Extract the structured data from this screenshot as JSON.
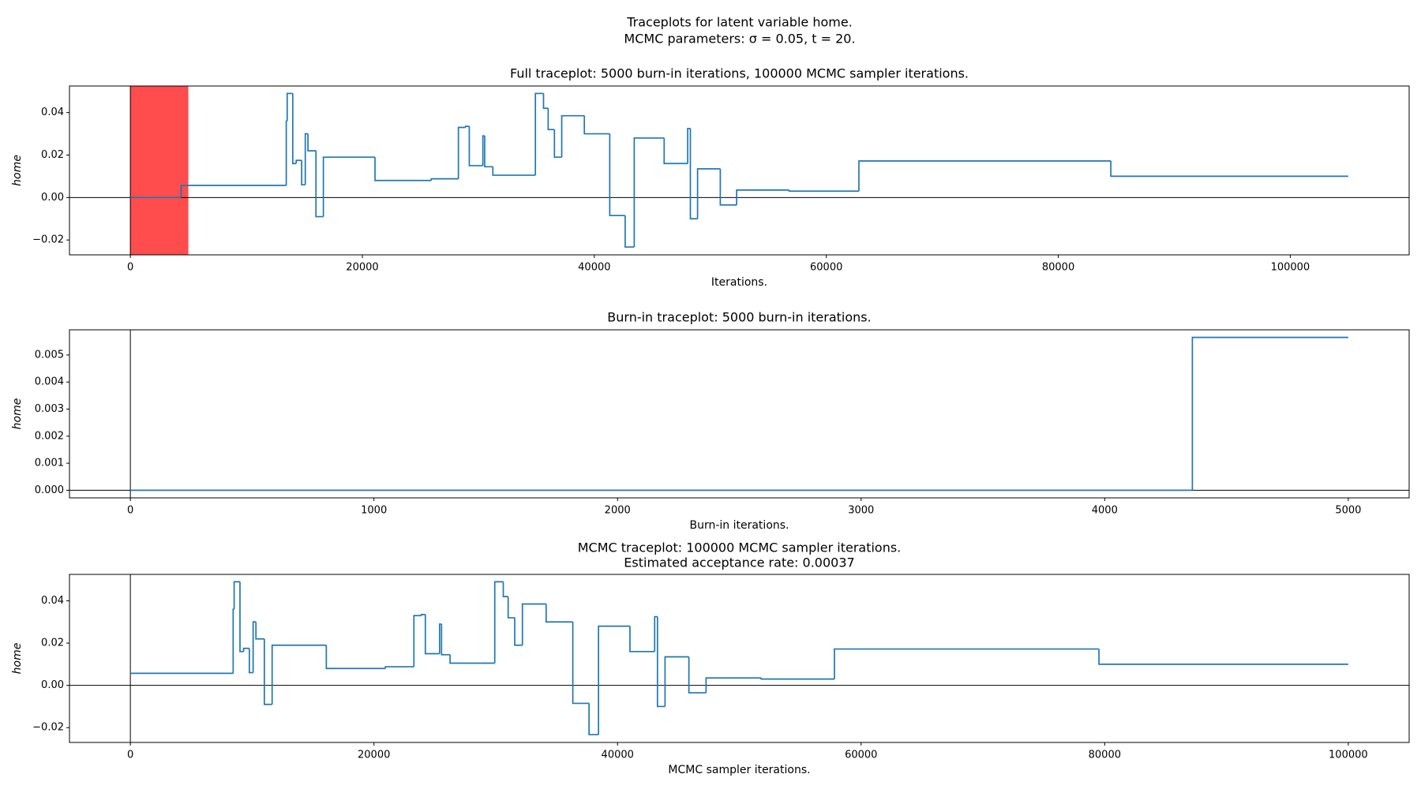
{
  "title": [
    "Traceplots for latent variable home.",
    "MCMC parameters: σ = 0.05, t =  20."
  ],
  "chart_data": [
    {
      "type": "line",
      "step": "post",
      "title": "Full traceplot: 5000 burn-in iterations, 100000 MCMC sampler iterations.",
      "xlabel": "Iterations.",
      "ylabel": "home",
      "color": "#1f77b4",
      "span": [
        0,
        5000
      ],
      "span_color": "#ff4c4c",
      "hline": 0,
      "vline": 0,
      "x": [
        0,
        4375,
        13440,
        13520,
        14000,
        14300,
        14770,
        15080,
        15310,
        16000,
        16640,
        21090,
        25940,
        28280,
        28900,
        29220,
        30390,
        30550,
        31250,
        34920,
        35620,
        36020,
        36560,
        37190,
        39140,
        41330,
        42660,
        43440,
        46020,
        48050,
        48280,
        48900,
        50860,
        52270,
        56800,
        62810,
        84530,
        105000
      ],
      "values": [
        0,
        0.0057,
        0.036,
        0.049,
        0.016,
        0.0175,
        0.006,
        0.03,
        0.022,
        -0.009,
        0.019,
        0.008,
        0.0088,
        0.033,
        0.0335,
        0.015,
        0.029,
        0.0145,
        0.0105,
        0.049,
        0.042,
        0.032,
        0.019,
        0.0385,
        0.03,
        -0.0085,
        -0.0233,
        0.028,
        0.016,
        0.0325,
        -0.01,
        0.0135,
        -0.0035,
        0.0035,
        0.003,
        0.0172,
        0.01,
        0.01
      ],
      "xlim": [
        -5250,
        110250
      ],
      "ylim": [
        -0.027,
        0.0525
      ],
      "xticks": [
        0,
        20000,
        40000,
        60000,
        80000,
        100000
      ],
      "yticks": [
        {
          "value": -0.02,
          "label": "−0.02"
        },
        {
          "value": 0,
          "label": "0.00"
        },
        0.02,
        0.04
      ]
    },
    {
      "type": "line",
      "step": "post",
      "title": "Burn-in traceplot: 5000 burn-in iterations.",
      "xlabel": "Burn-in iterations.",
      "ylabel": "home",
      "color": "#1f77b4",
      "hline": 0,
      "vline": 0,
      "x": [
        0,
        4360,
        5000
      ],
      "values": [
        0,
        0.00565,
        0.00565
      ],
      "xlim": [
        -250,
        5250
      ],
      "ylim": [
        -0.00028,
        0.00593
      ],
      "xticks": [
        0,
        1000,
        2000,
        3000,
        4000,
        5000
      ],
      "yticks": [
        {
          "value": 0,
          "label": "0.000"
        },
        0.001,
        0.002,
        0.003,
        0.004,
        0.005
      ]
    },
    {
      "type": "line",
      "step": "post",
      "title": [
        "MCMC traceplot: 100000 MCMC sampler iterations.",
        "Estimated acceptance rate: 0.00037"
      ],
      "xlabel": "MCMC sampler iterations.",
      "ylabel": "home",
      "color": "#1f77b4",
      "hline": 0,
      "vline": 0,
      "x": [
        0,
        8440,
        8520,
        9000,
        9300,
        9770,
        10080,
        10310,
        11000,
        11640,
        16090,
        20940,
        23280,
        23900,
        24220,
        25390,
        25550,
        26250,
        29920,
        30620,
        31020,
        31560,
        32190,
        34140,
        36330,
        37660,
        38440,
        41020,
        43050,
        43280,
        43900,
        45860,
        47270,
        51800,
        57810,
        79530,
        100000
      ],
      "values": [
        0.0057,
        0.036,
        0.049,
        0.016,
        0.0175,
        0.006,
        0.03,
        0.022,
        -0.009,
        0.019,
        0.008,
        0.0088,
        0.033,
        0.0335,
        0.015,
        0.029,
        0.0145,
        0.0105,
        0.049,
        0.042,
        0.032,
        0.019,
        0.0385,
        0.03,
        -0.0085,
        -0.0233,
        0.028,
        0.016,
        0.0325,
        -0.01,
        0.0135,
        -0.0035,
        0.0035,
        0.003,
        0.0172,
        0.01,
        0.01
      ],
      "xlim": [
        -5000,
        105000
      ],
      "ylim": [
        -0.027,
        0.0525
      ],
      "xticks": [
        0,
        20000,
        40000,
        60000,
        80000,
        100000
      ],
      "yticks": [
        {
          "value": -0.02,
          "label": "−0.02"
        },
        {
          "value": 0,
          "label": "0.00"
        },
        0.02,
        0.04
      ]
    }
  ]
}
